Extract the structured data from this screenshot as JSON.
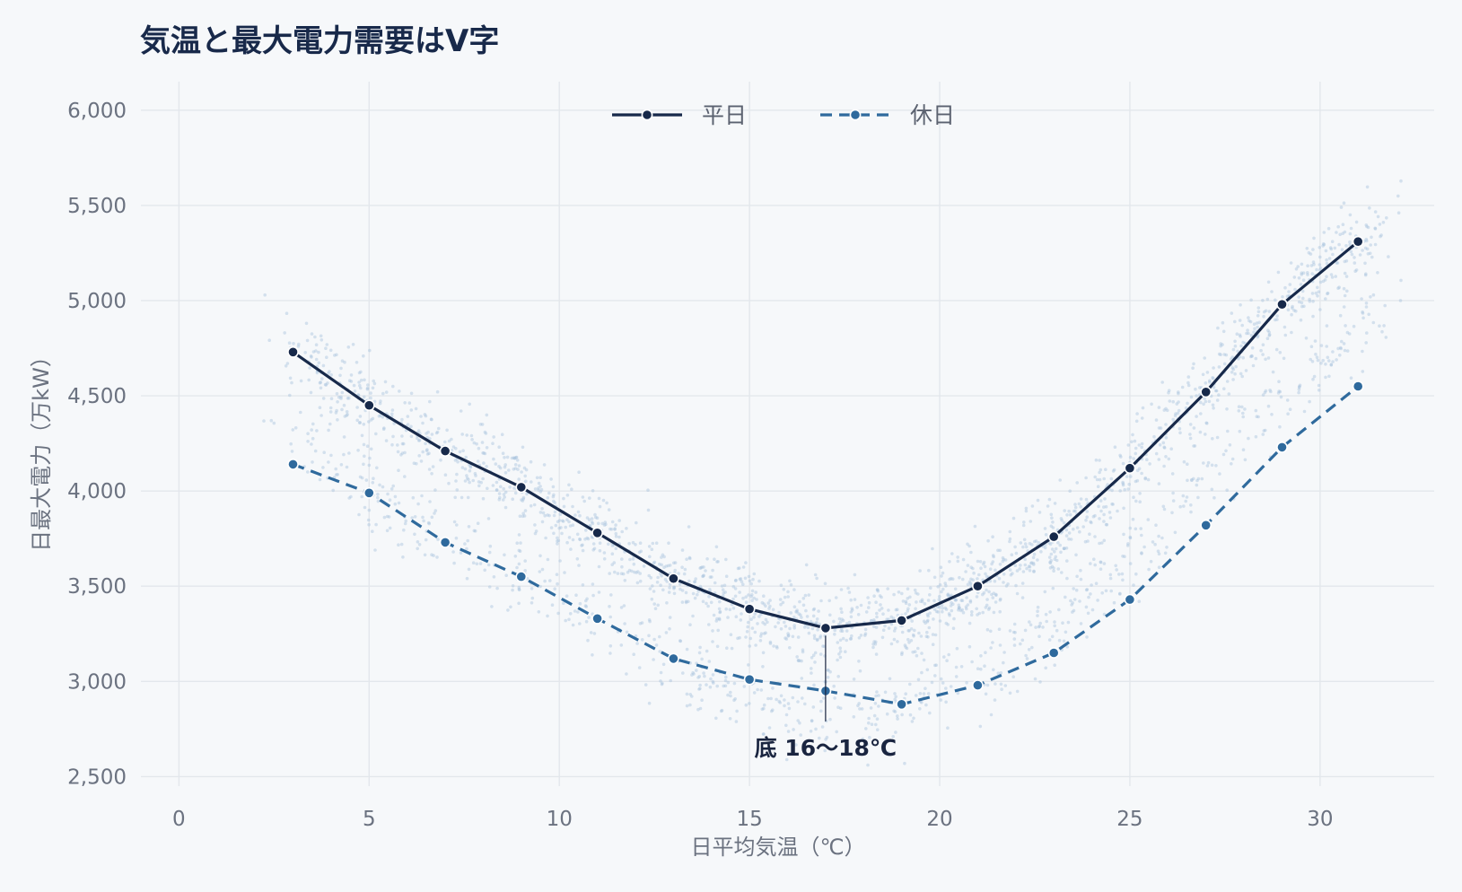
{
  "chart_data": {
    "type": "line",
    "title": "気温と最大電力需要はV字",
    "xlabel": "日平均気温（℃）",
    "ylabel": "日最大電力（万kW）",
    "xlim": [
      -1,
      33
    ],
    "ylim": [
      2450,
      6150
    ],
    "x_ticks": [
      0,
      5,
      10,
      15,
      20,
      25,
      30
    ],
    "x_tick_labels": [
      "0",
      "5",
      "10",
      "15",
      "20",
      "25",
      "30"
    ],
    "y_ticks": [
      2500,
      3000,
      3500,
      4000,
      4500,
      5000,
      5500,
      6000
    ],
    "y_tick_labels": [
      "2,500",
      "3,000",
      "3,500",
      "4,000",
      "4,500",
      "5,000",
      "5,500",
      "6,000"
    ],
    "grid": true,
    "legend_position": "top-center",
    "x": [
      3,
      5,
      7,
      9,
      11,
      13,
      15,
      17,
      19,
      21,
      23,
      25,
      27,
      29,
      31
    ],
    "series": [
      {
        "name": "平日",
        "style": "solid",
        "color": "#17294a",
        "values": [
          4730,
          4450,
          4210,
          4020,
          3780,
          3540,
          3380,
          3280,
          3320,
          3500,
          3760,
          4120,
          4520,
          4980,
          5310
        ]
      },
      {
        "name": "休日",
        "style": "dashed",
        "color": "#2f6a9d",
        "values": [
          4140,
          3990,
          3730,
          3550,
          3330,
          3120,
          3010,
          2950,
          2880,
          2980,
          3150,
          3430,
          3820,
          4230,
          4550
        ]
      }
    ],
    "scatter_color": "#a9c3dd",
    "annotation": {
      "text": "底 16〜18℃",
      "x": 17,
      "y_from": 3240,
      "y_to": 2790
    }
  }
}
